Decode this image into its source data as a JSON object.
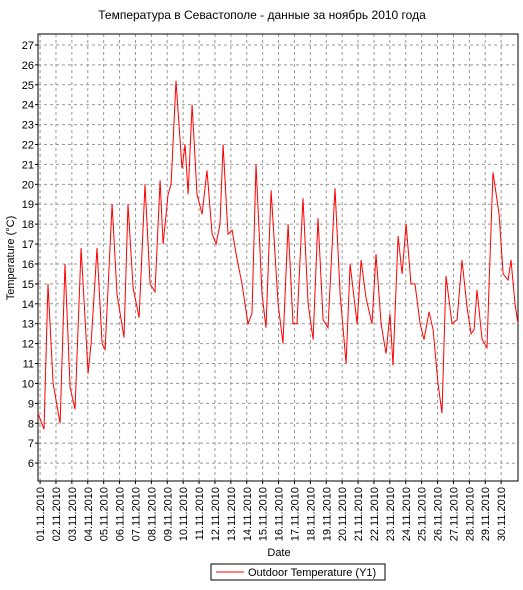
{
  "chart_data": {
    "type": "line",
    "title": "Температура в Севастополе - данные за ноябрь 2010 года",
    "y_label": "Temperature (°C)",
    "x_label": "Date",
    "series": [
      {
        "name": "Outdoor Temperature (Y1)",
        "color": "#ff0000",
        "x": [
          0.87,
          1.25,
          1.5,
          1.82,
          2.26,
          2.57,
          2.89,
          3.2,
          3.58,
          4.02,
          4.21,
          4.58,
          4.9,
          5.09,
          5.53,
          5.84,
          6.28,
          6.53,
          6.85,
          7.23,
          7.6,
          7.92,
          8.23,
          8.55,
          8.74,
          9.05,
          9.24,
          9.55,
          9.93,
          10.12,
          10.31,
          10.56,
          10.87,
          11.19,
          11.5,
          11.82,
          12.07,
          12.32,
          12.51,
          12.82,
          13.08,
          13.33,
          13.7,
          14.08,
          14.33,
          14.58,
          14.96,
          15.21,
          15.53,
          15.97,
          16.28,
          16.6,
          16.91,
          17.16,
          17.54,
          17.86,
          18.17,
          18.48,
          18.8,
          19.11,
          19.55,
          19.87,
          20.25,
          20.5,
          20.94,
          21.19,
          21.5,
          21.88,
          22.13,
          22.45,
          22.76,
          23.01,
          23.2,
          23.52,
          23.77,
          24.02,
          24.33,
          24.58,
          24.9,
          25.15,
          25.47,
          25.72,
          26.03,
          26.28,
          26.53,
          26.91,
          27.23,
          27.54,
          27.86,
          28.11,
          28.3,
          28.48,
          28.8,
          29.11,
          29.24,
          29.49,
          29.87,
          30.12,
          30.44,
          30.62,
          30.87,
          31.06
        ],
        "values": [
          8.5,
          7.7,
          15,
          10,
          8,
          16,
          9.8,
          8.7,
          16.8,
          10.5,
          12,
          16.8,
          12,
          11.7,
          19,
          14.5,
          12.3,
          19,
          14.8,
          13.3,
          20,
          15,
          14.6,
          20.2,
          17,
          19.5,
          20,
          25.2,
          20.8,
          22,
          19.5,
          24,
          19.5,
          18.5,
          20.7,
          17.5,
          17,
          18,
          22,
          17.5,
          17.7,
          16.5,
          15,
          13,
          13.5,
          21,
          14.5,
          12.8,
          19.7,
          14,
          12,
          18,
          13,
          13,
          19.3,
          14,
          12.2,
          18.3,
          13.2,
          12.8,
          19.8,
          14.5,
          11,
          16,
          13,
          16.2,
          14.3,
          13,
          16.5,
          13,
          11.5,
          13.5,
          10.9,
          17.4,
          15.5,
          18,
          15,
          15,
          13,
          12.2,
          13.6,
          12.7,
          10,
          8.5,
          15.4,
          13,
          13.2,
          16.2,
          13.8,
          12.5,
          12.7,
          14.7,
          12.2,
          11.8,
          15,
          20.6,
          18.5,
          15.5,
          15.2,
          16.2,
          14,
          13
        ]
      }
    ],
    "xlim": [
      0.87,
      31.06
    ],
    "xticks": [
      {
        "value": 1,
        "label": "01.11.2010"
      },
      {
        "value": 2,
        "label": "02.11.2010"
      },
      {
        "value": 3,
        "label": "03.11.2010"
      },
      {
        "value": 4,
        "label": "04.11.2010"
      },
      {
        "value": 5,
        "label": "05.11.2010"
      },
      {
        "value": 6,
        "label": "06.11.2010"
      },
      {
        "value": 7,
        "label": "07.11.2010"
      },
      {
        "value": 8,
        "label": "08.11.2010"
      },
      {
        "value": 9,
        "label": "09.11.2010"
      },
      {
        "value": 10,
        "label": "10.11.2010"
      },
      {
        "value": 11,
        "label": "11.11.2010"
      },
      {
        "value": 12,
        "label": "12.11.2010"
      },
      {
        "value": 13,
        "label": "13.11.2010"
      },
      {
        "value": 14,
        "label": "14.11.2010"
      },
      {
        "value": 15,
        "label": "15.11.2010"
      },
      {
        "value": 16,
        "label": "16.11.2010"
      },
      {
        "value": 17,
        "label": "17.11.2010"
      },
      {
        "value": 18,
        "label": "18.11.2010"
      },
      {
        "value": 19,
        "label": "19.11.2010"
      },
      {
        "value": 20,
        "label": "20.11.2010"
      },
      {
        "value": 21,
        "label": "21.11.2010"
      },
      {
        "value": 22,
        "label": "22.11.2010"
      },
      {
        "value": 23,
        "label": "23.11.2010"
      },
      {
        "value": 24,
        "label": "24.11.2010"
      },
      {
        "value": 25,
        "label": "25.11.2010"
      },
      {
        "value": 26,
        "label": "26.11.2010"
      },
      {
        "value": 27,
        "label": "27.11.2010"
      },
      {
        "value": 28,
        "label": "28.11.2010"
      },
      {
        "value": 29,
        "label": "29.11.2010"
      },
      {
        "value": 30,
        "label": "30.11.2010"
      }
    ],
    "ylim": [
      5.1,
      27.55
    ],
    "yticks": [
      6,
      7,
      8,
      9,
      10,
      11,
      12,
      13,
      14,
      15,
      16,
      17,
      18,
      19,
      20,
      21,
      22,
      23,
      24,
      25,
      26,
      27
    ],
    "grid": true
  }
}
